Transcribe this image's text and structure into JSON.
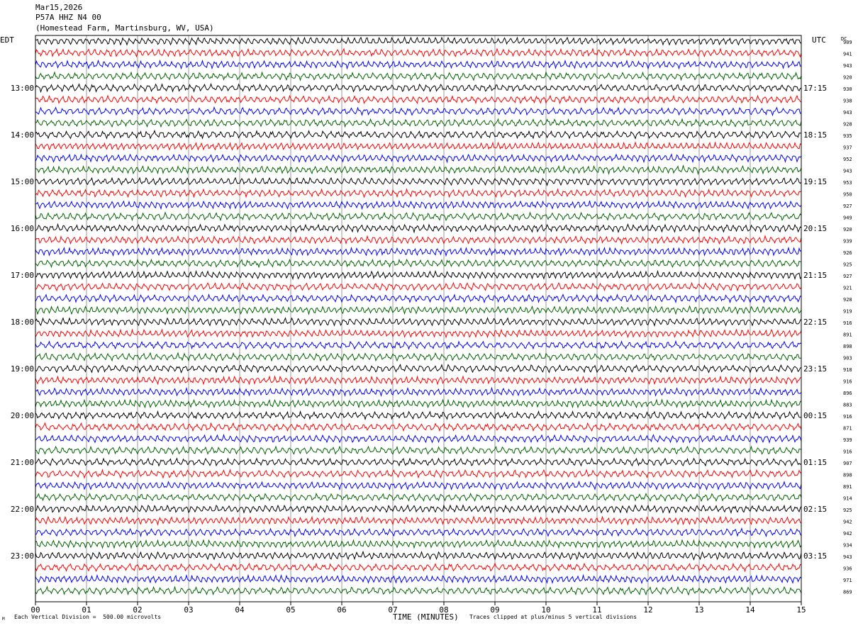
{
  "header": {
    "date": "Mar15,2026",
    "station": "P57A HHZ N4 00",
    "location": "(Homestead Farm, Martinsburg, WV, USA)"
  },
  "left_tz": "EDT",
  "right_tz": "UTC",
  "dc_label": "DC",
  "footer": {
    "scale": "Each Vertical Division =  500.00 microvolts",
    "clip": "Traces clipped at plus/minus 5 vertical divisions",
    "corner_mark": "M"
  },
  "chart_data": {
    "type": "line",
    "xlabel": "TIME (MINUTES)",
    "x_ticks": [
      "00",
      "01",
      "02",
      "03",
      "04",
      "05",
      "06",
      "07",
      "08",
      "09",
      "10",
      "11",
      "12",
      "13",
      "14",
      "15"
    ],
    "xlim": [
      0,
      15
    ],
    "grid": true,
    "trace_colors": [
      "#000000",
      "#ff0000",
      "#0000ff",
      "#006400"
    ],
    "left_times": [
      "13:00",
      "14:00",
      "15:00",
      "16:00",
      "17:00",
      "18:00",
      "19:00",
      "20:00",
      "21:00",
      "22:00",
      "23:00"
    ],
    "right_times": [
      "17:15",
      "18:15",
      "19:15",
      "20:15",
      "21:15",
      "22:15",
      "23:15",
      "00:15",
      "01:15",
      "02:15",
      "03:15"
    ],
    "dc_offsets": [
      "909",
      "941",
      "943",
      "920",
      "930",
      "938",
      "943",
      "928",
      "935",
      "937",
      "952",
      "943",
      "953",
      "950",
      "927",
      "949",
      "920",
      "939",
      "926",
      "925",
      "927",
      "921",
      "928",
      "919",
      "916",
      "891",
      "898",
      "903",
      "918",
      "916",
      "896",
      "883",
      "916",
      "871",
      "939",
      "916",
      "907",
      "898",
      "891",
      "914",
      "925",
      "942",
      "942",
      "934",
      "943",
      "936",
      "971",
      "869"
    ],
    "trace_count": 48,
    "minutes_per_trace": 15
  }
}
